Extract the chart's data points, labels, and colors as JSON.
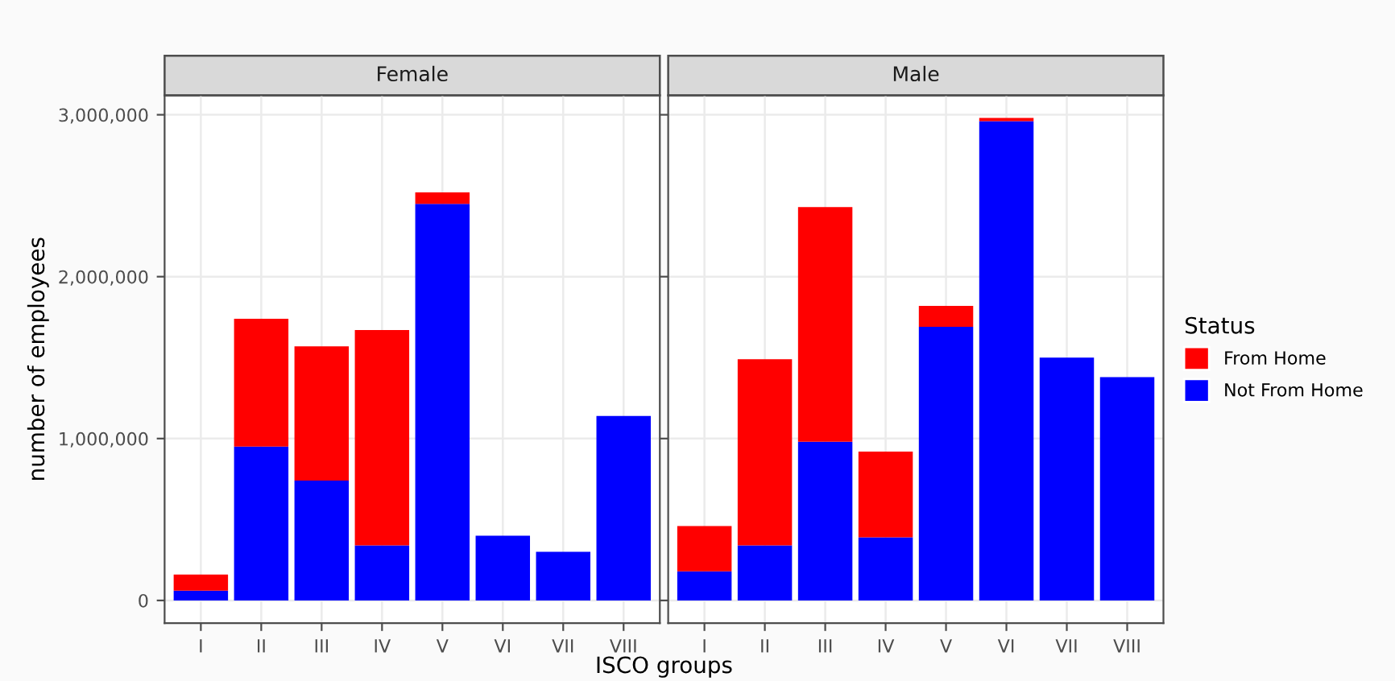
{
  "chart_data": [
    {
      "type": "bar",
      "title": "Female",
      "ylabel": "number of employees",
      "xlabel": "ISCO groups",
      "stacked": true,
      "grid": true,
      "categories": [
        "I",
        "II",
        "III",
        "IV",
        "V",
        "VI",
        "VII",
        "VIII"
      ],
      "ylim": [
        -140000,
        3120000
      ],
      "yticks": [
        {
          "value": 0,
          "label": "0"
        },
        {
          "value": 1000000,
          "label": "1,000,000"
        },
        {
          "value": 2000000,
          "label": "2,000,000"
        },
        {
          "value": 3000000,
          "label": "3,000,000"
        }
      ],
      "series": [
        {
          "color": "#0000ff",
          "values": [
            60000,
            950000,
            740000,
            340000,
            2450000,
            400000,
            300000,
            1140000
          ]
        },
        {
          "color": "#ff0000",
          "values": [
            100000,
            790000,
            830000,
            1330000,
            70000,
            null,
            null,
            null
          ]
        }
      ]
    },
    {
      "type": "bar",
      "title": "Male",
      "stacked": true,
      "grid": true,
      "legend": "right",
      "legend_title": "Status",
      "tick_labels": "x",
      "categories": [
        "I",
        "II",
        "III",
        "IV",
        "V",
        "VI",
        "VII",
        "VIII"
      ],
      "ylim": [
        -140000,
        3120000
      ],
      "yticks": [
        {
          "value": 0,
          "label": null
        },
        {
          "value": 1000000,
          "label": null
        },
        {
          "value": 2000000,
          "label": null
        },
        {
          "value": 3000000,
          "label": null
        }
      ],
      "series": [
        {
          "name": "Not From Home",
          "color": "#0000ff",
          "values": [
            180000,
            340000,
            980000,
            390000,
            1690000,
            2960000,
            1500000,
            1380000
          ]
        },
        {
          "name": "From Home",
          "color": "#ff0000",
          "values": [
            280000,
            1150000,
            1450000,
            530000,
            130000,
            20000,
            null,
            null
          ]
        }
      ]
    }
  ]
}
